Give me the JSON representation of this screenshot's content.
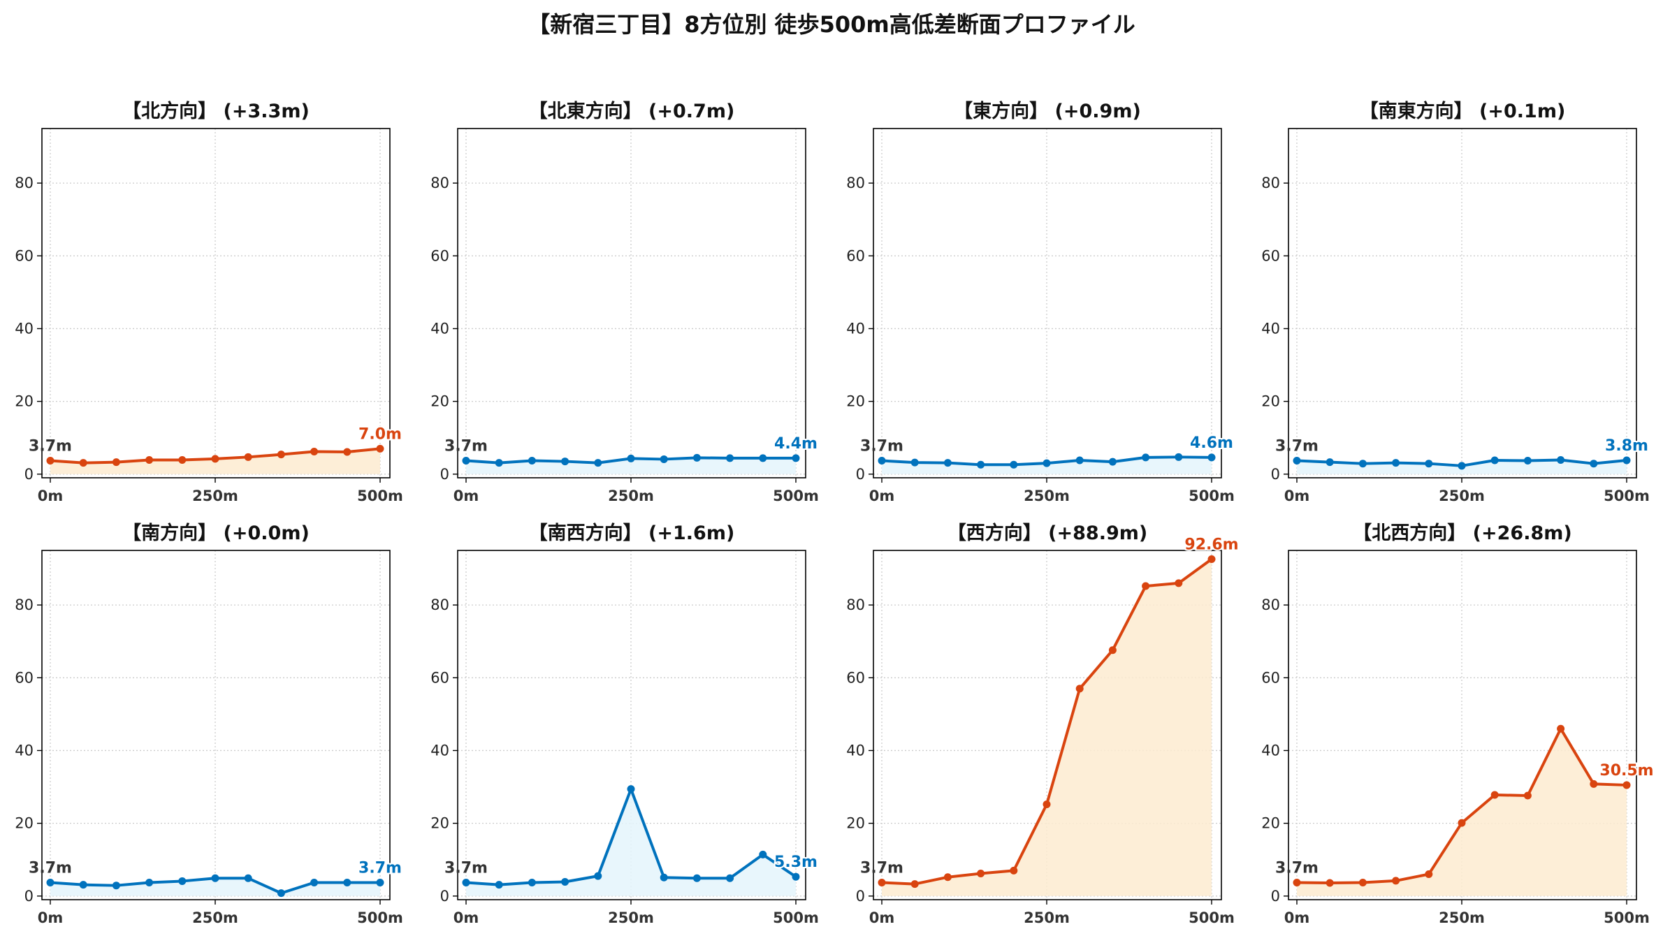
{
  "figure_title": "【新宿三丁目】8方位別 徒歩500m高低差断面プロファイル",
  "colors": {
    "up": "#D9440F",
    "down": "#0072BD",
    "up_fill": "#FDEBD0",
    "down_fill": "#E4F4FB",
    "start_label": "#333333"
  },
  "chart_data": [
    {
      "type": "line",
      "title": "【北方向】 (+3.3m)",
      "trend": "up",
      "x": [
        0,
        50,
        100,
        150,
        200,
        250,
        300,
        350,
        400,
        450,
        500
      ],
      "y": [
        3.7,
        3.1,
        3.3,
        3.9,
        3.9,
        4.2,
        4.7,
        5.4,
        6.2,
        6.1,
        7.0
      ],
      "start_label": "3.7m",
      "end_label": "7.0m",
      "xticks": [
        "0m",
        "250m",
        "500m"
      ],
      "ylim": [
        -1,
        95
      ],
      "yticks": [
        0,
        20,
        40,
        60,
        80
      ],
      "grid": true
    },
    {
      "type": "line",
      "title": "【北東方向】 (+0.7m)",
      "trend": "down",
      "x": [
        0,
        50,
        100,
        150,
        200,
        250,
        300,
        350,
        400,
        450,
        500
      ],
      "y": [
        3.7,
        3.1,
        3.7,
        3.5,
        3.1,
        4.3,
        4.1,
        4.5,
        4.4,
        4.4,
        4.4
      ],
      "start_label": "3.7m",
      "end_label": "4.4m",
      "xticks": [
        "0m",
        "250m",
        "500m"
      ],
      "ylim": [
        -1,
        95
      ],
      "yticks": [
        0,
        20,
        40,
        60,
        80
      ],
      "grid": true
    },
    {
      "type": "line",
      "title": "【東方向】 (+0.9m)",
      "trend": "down",
      "x": [
        0,
        50,
        100,
        150,
        200,
        250,
        300,
        350,
        400,
        450,
        500
      ],
      "y": [
        3.7,
        3.2,
        3.1,
        2.6,
        2.6,
        3.0,
        3.8,
        3.4,
        4.6,
        4.7,
        4.6
      ],
      "start_label": "3.7m",
      "end_label": "4.6m",
      "xticks": [
        "0m",
        "250m",
        "500m"
      ],
      "ylim": [
        -1,
        95
      ],
      "yticks": [
        0,
        20,
        40,
        60,
        80
      ],
      "grid": true
    },
    {
      "type": "line",
      "title": "【南東方向】 (+0.1m)",
      "trend": "down",
      "x": [
        0,
        50,
        100,
        150,
        200,
        250,
        300,
        350,
        400,
        450,
        500
      ],
      "y": [
        3.7,
        3.3,
        2.9,
        3.1,
        2.9,
        2.3,
        3.8,
        3.7,
        3.9,
        2.9,
        3.8
      ],
      "start_label": "3.7m",
      "end_label": "3.8m",
      "xticks": [
        "0m",
        "250m",
        "500m"
      ],
      "ylim": [
        -1,
        95
      ],
      "yticks": [
        0,
        20,
        40,
        60,
        80
      ],
      "grid": true
    },
    {
      "type": "line",
      "title": "【南方向】 (+0.0m)",
      "trend": "down",
      "x": [
        0,
        50,
        100,
        150,
        200,
        250,
        300,
        350,
        400,
        450,
        500
      ],
      "y": [
        3.7,
        3.1,
        2.9,
        3.7,
        4.1,
        4.9,
        4.9,
        0.8,
        3.7,
        3.7,
        3.7
      ],
      "start_label": "3.7m",
      "end_label": "3.7m",
      "xticks": [
        "0m",
        "250m",
        "500m"
      ],
      "ylim": [
        -1,
        95
      ],
      "yticks": [
        0,
        20,
        40,
        60,
        80
      ],
      "grid": true
    },
    {
      "type": "line",
      "title": "【南西方向】 (+1.6m)",
      "trend": "down",
      "x": [
        0,
        50,
        100,
        150,
        200,
        250,
        300,
        350,
        400,
        450,
        500
      ],
      "y": [
        3.7,
        3.1,
        3.7,
        3.9,
        5.5,
        29.4,
        5.1,
        4.9,
        4.9,
        11.4,
        5.3
      ],
      "start_label": "3.7m",
      "end_label": "5.3m",
      "xticks": [
        "0m",
        "250m",
        "500m"
      ],
      "ylim": [
        -1,
        95
      ],
      "yticks": [
        0,
        20,
        40,
        60,
        80
      ],
      "grid": true
    },
    {
      "type": "line",
      "title": "【西方向】 (+88.9m)",
      "trend": "up",
      "x": [
        0,
        50,
        100,
        150,
        200,
        250,
        300,
        350,
        400,
        450,
        500
      ],
      "y": [
        3.7,
        3.3,
        5.2,
        6.2,
        7.0,
        25.2,
        57.0,
        67.6,
        85.2,
        86.0,
        92.6
      ],
      "start_label": "3.7m",
      "end_label": "92.6m",
      "xticks": [
        "0m",
        "250m",
        "500m"
      ],
      "ylim": [
        -1,
        95
      ],
      "yticks": [
        0,
        20,
        40,
        60,
        80
      ],
      "grid": true
    },
    {
      "type": "line",
      "title": "【北西方向】 (+26.8m)",
      "trend": "up",
      "x": [
        0,
        50,
        100,
        150,
        200,
        250,
        300,
        350,
        400,
        450,
        500
      ],
      "y": [
        3.7,
        3.6,
        3.7,
        4.2,
        6.0,
        20.1,
        27.8,
        27.6,
        46.0,
        30.8,
        30.5
      ],
      "start_label": "3.7m",
      "end_label": "30.5m",
      "xticks": [
        "0m",
        "250m",
        "500m"
      ],
      "ylim": [
        -1,
        95
      ],
      "yticks": [
        0,
        20,
        40,
        60,
        80
      ],
      "grid": true
    }
  ]
}
